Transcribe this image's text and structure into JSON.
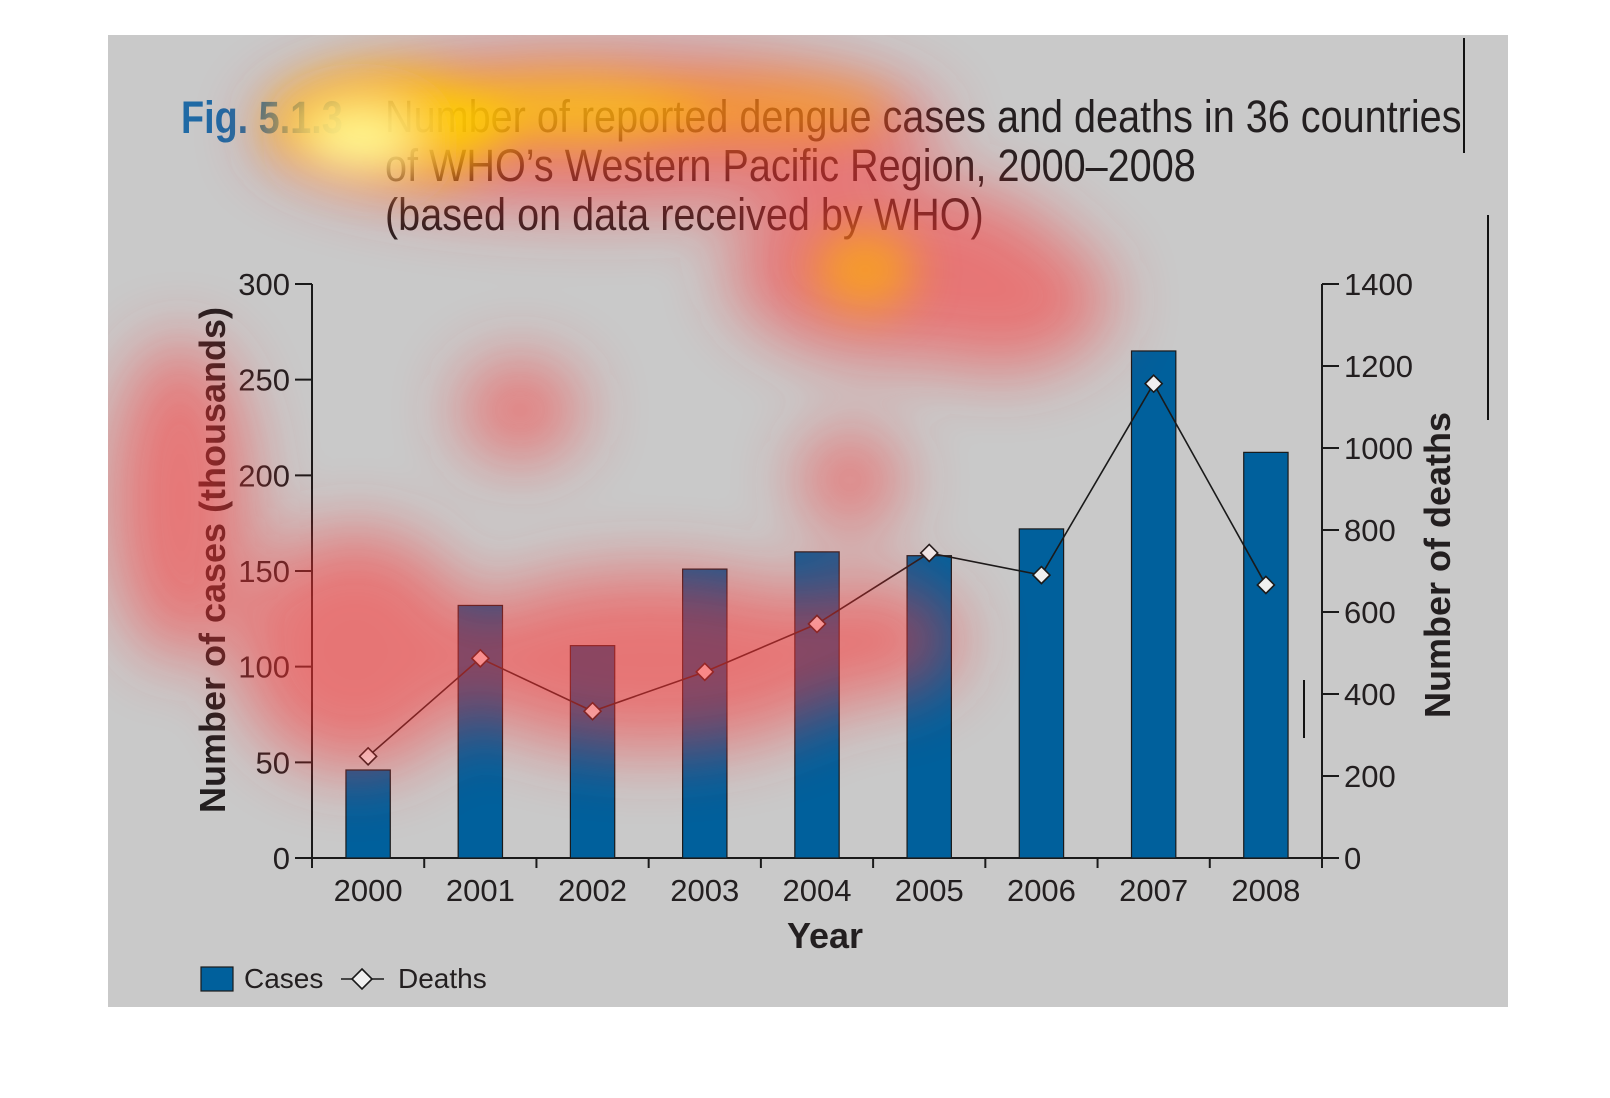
{
  "figure": {
    "label": "Fig. 5.1.3",
    "title_lines": [
      "Number of reported dengue cases and deaths in 36 countries",
      "of WHO’s Western Pacific Region, 2000–2008",
      "(based on data received by WHO)"
    ]
  },
  "chart_data": {
    "type": "bar",
    "categories": [
      "2000",
      "2001",
      "2002",
      "2003",
      "2004",
      "2005",
      "2006",
      "2007",
      "2008"
    ],
    "series": [
      {
        "name": "Cases",
        "type": "bar",
        "axis": "left",
        "color": "#00609c",
        "values": [
          46,
          132,
          111,
          151,
          160,
          158,
          172,
          265,
          212
        ]
      },
      {
        "name": "Deaths",
        "type": "line",
        "axis": "right",
        "marker": "diamond",
        "color": "#1a1a1a",
        "values": [
          248,
          487,
          358,
          454,
          571,
          744,
          690,
          1157,
          666
        ]
      }
    ],
    "xlabel": "Year",
    "ylabel": "Number of cases (thousands)",
    "y2label": "Number of deaths",
    "ylim": [
      0,
      300
    ],
    "yticks": [
      "0",
      "50",
      "100",
      "150",
      "200",
      "250",
      "300"
    ],
    "y2lim": [
      0,
      1400
    ],
    "y2ticks": [
      "0",
      "200",
      "400",
      "600",
      "800",
      "1000",
      "1200",
      "1400"
    ],
    "legend": {
      "position": "bottom-left",
      "items": [
        "Cases",
        "Deaths"
      ]
    },
    "grid": false,
    "overlay": "attention heatmap"
  }
}
